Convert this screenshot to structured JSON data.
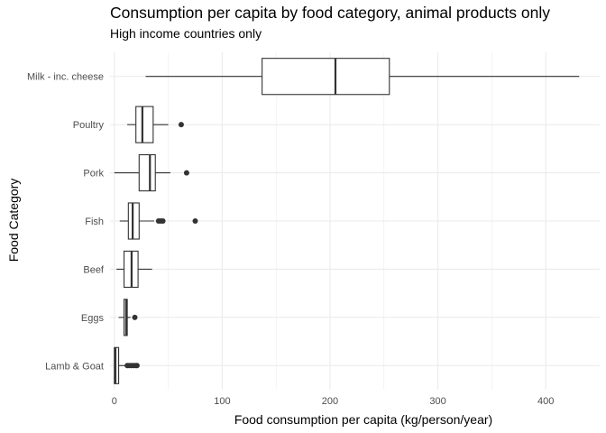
{
  "chart_data": {
    "type": "boxplot",
    "orientation": "horizontal",
    "title": "Consumption per capita by food category, animal products only",
    "subtitle": "High income countries only",
    "xlabel": "Food consumption per capita (kg/person/year)",
    "ylabel": "Food Category",
    "xlim": [
      -4,
      450
    ],
    "x_ticks": [
      0,
      100,
      200,
      300,
      400
    ],
    "grid": true,
    "colors": {
      "box_fill": "#ffffff",
      "box_stroke": "#333333",
      "grid": "#ebebeb",
      "outlier": "#333333"
    },
    "categories": [
      "Milk - inc. cheese",
      "Poultry",
      "Pork",
      "Fish",
      "Beef",
      "Eggs",
      "Lamb & Goat"
    ],
    "boxes": [
      {
        "category": "Milk - inc. cheese",
        "whisker_low": 29,
        "q1": 137,
        "median": 205,
        "q3": 255,
        "whisker_high": 431,
        "outliers": []
      },
      {
        "category": "Poultry",
        "whisker_low": 12,
        "q1": 20,
        "median": 26,
        "q3": 36,
        "whisker_high": 50,
        "outliers": [
          62
        ]
      },
      {
        "category": "Pork",
        "whisker_low": 0,
        "q1": 23,
        "median": 33,
        "q3": 38,
        "whisker_high": 52,
        "outliers": [
          67
        ]
      },
      {
        "category": "Fish",
        "whisker_low": 5,
        "q1": 13,
        "median": 17,
        "q3": 23,
        "whisker_high": 37,
        "outliers": [
          41,
          43,
          45,
          75
        ]
      },
      {
        "category": "Beef",
        "whisker_low": 2,
        "q1": 9,
        "median": 16,
        "q3": 22,
        "whisker_high": 35,
        "outliers": []
      },
      {
        "category": "Eggs",
        "whisker_low": 4,
        "q1": 9,
        "median": 11,
        "q3": 12,
        "whisker_high": 15,
        "outliers": [
          19
        ]
      },
      {
        "category": "Lamb & Goat",
        "whisker_low": 0,
        "q1": 0,
        "median": 1,
        "q3": 4,
        "whisker_high": 10,
        "outliers": [
          12,
          14,
          16,
          18,
          20,
          21
        ]
      }
    ]
  }
}
